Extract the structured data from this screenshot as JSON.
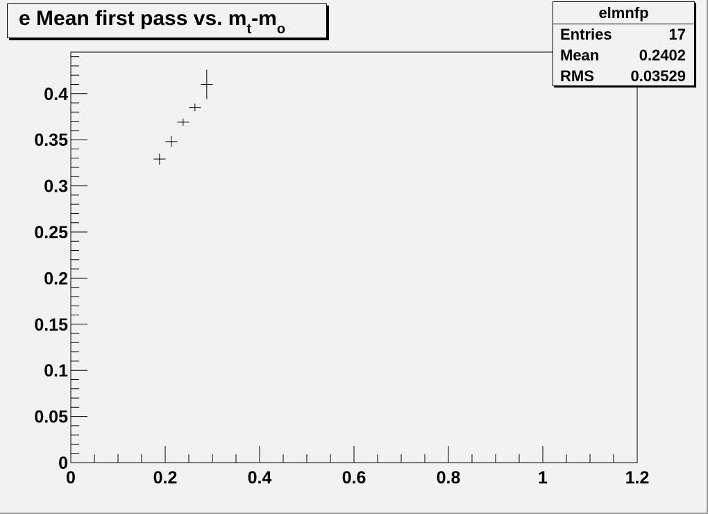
{
  "chart_data": {
    "type": "scatter",
    "title_main": "e Mean first pass vs. m",
    "title_sub1": "t",
    "title_mid": "-m",
    "title_sub2": "o",
    "xlabel": "",
    "ylabel": "",
    "xlim": [
      0,
      1.2
    ],
    "ylim": [
      0,
      0.445
    ],
    "x_ticks": [
      "0",
      "0.2",
      "0.4",
      "0.6",
      "0.8",
      "1",
      "1.2"
    ],
    "y_ticks": [
      "0",
      "0.05",
      "0.1",
      "0.15",
      "0.2",
      "0.25",
      "0.3",
      "0.35",
      "0.4"
    ],
    "points": [
      {
        "x": 0.188,
        "y": 0.329,
        "xerr": 0.0125,
        "yerr": 0.006
      },
      {
        "x": 0.213,
        "y": 0.348,
        "xerr": 0.0125,
        "yerr": 0.006
      },
      {
        "x": 0.238,
        "y": 0.369,
        "xerr": 0.0125,
        "yerr": 0.004
      },
      {
        "x": 0.263,
        "y": 0.385,
        "xerr": 0.0125,
        "yerr": 0.004
      },
      {
        "x": 0.288,
        "y": 0.41,
        "xerr": 0.0125,
        "yerr": 0.016
      }
    ],
    "grid": false,
    "legend_placement": "top-right"
  },
  "stats": {
    "name": "elmnfp",
    "rows": [
      {
        "key": "Entries",
        "value": "17"
      },
      {
        "key": "Mean",
        "value": "0.2402"
      },
      {
        "key": "RMS",
        "value": "0.03529"
      }
    ]
  }
}
